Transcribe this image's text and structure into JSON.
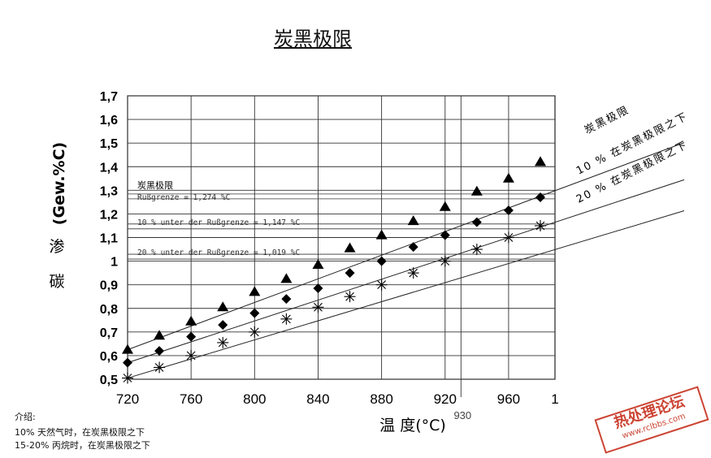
{
  "header": {
    "title": "炭黑极限"
  },
  "footnotes": {
    "heading": "介绍:",
    "line1": "10% 天然气时，在炭黑极限之下",
    "line2": "15-20% 丙烷时，在炭黑极限之下"
  },
  "stamp": {
    "main": "热处理论坛",
    "url": "www.rclbbs.com"
  },
  "chart_data": {
    "type": "line",
    "title": "炭黑极限",
    "ylabel_vertical_chars": [
      "渗",
      "碳"
    ],
    "ylabel_unit": "(Gew.%C)",
    "xlabel": "温 度(°C)",
    "xlim": [
      720,
      980
    ],
    "ylim": [
      0.5,
      1.7
    ],
    "x_ticks": [
      "720",
      "760",
      "800",
      "840",
      "880",
      "920",
      "960",
      "1"
    ],
    "x_extra_label": "930",
    "y_ticks": [
      "0,5",
      "0,6",
      "0,7",
      "0,8",
      "0,9",
      "1",
      "1,1",
      "1,2",
      "1,3",
      "1,4",
      "1,5",
      "1,6",
      "1,7"
    ],
    "grid": true,
    "x": [
      720,
      740,
      760,
      780,
      800,
      820,
      840,
      860,
      880,
      900,
      920,
      940,
      960,
      980
    ],
    "series": [
      {
        "name": "炭黑极限",
        "marker": "triangle",
        "values": [
          0.625,
          0.685,
          0.745,
          0.805,
          0.87,
          0.925,
          0.985,
          1.055,
          1.11,
          1.17,
          1.23,
          1.295,
          1.35,
          1.42
        ]
      },
      {
        "name": "10 % 在炭黑极限之下",
        "marker": "diamond",
        "values": [
          0.57,
          0.62,
          0.68,
          0.73,
          0.78,
          0.84,
          0.885,
          0.95,
          1.0,
          1.06,
          1.11,
          1.165,
          1.215,
          1.27
        ]
      },
      {
        "name": "20 % 在炭黑极限之下",
        "marker": "star",
        "values": [
          0.505,
          0.55,
          0.6,
          0.655,
          0.7,
          0.755,
          0.805,
          0.85,
          0.9,
          0.95,
          1.0,
          1.05,
          1.1,
          1.15
        ]
      }
    ],
    "reference_lines": [
      {
        "label_top": "炭黑极限",
        "label": "Rußgrenze = 1,274 %C",
        "value": 1.274
      },
      {
        "label": "10 % unter der Rußgrenze = 1,147 %C",
        "value": 1.147
      },
      {
        "label": "20 % unter der Rußgrenze = 1,019 %C",
        "value": 1.019
      }
    ]
  }
}
